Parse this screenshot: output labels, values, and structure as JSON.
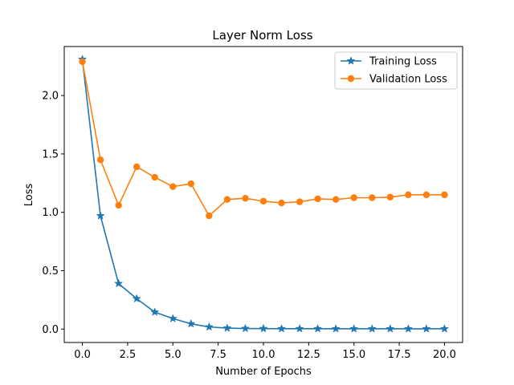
{
  "chart_data": {
    "type": "line",
    "title": "Layer Norm Loss",
    "xlabel": "Number of Epochs",
    "ylabel": "Loss",
    "xlim": [
      -1,
      21
    ],
    "ylim": [
      -0.115,
      2.42
    ],
    "xticks": [
      0,
      2.5,
      5,
      7.5,
      10,
      12.5,
      15,
      17.5,
      20
    ],
    "xtick_labels": [
      "0.0",
      "2.5",
      "5.0",
      "7.5",
      "10.0",
      "12.5",
      "15.0",
      "17.5",
      "20.0"
    ],
    "yticks": [
      0,
      0.5,
      1,
      1.5,
      2
    ],
    "ytick_labels": [
      "0.0",
      "0.5",
      "1.0",
      "1.5",
      "2.0"
    ],
    "grid": false,
    "legend_position": "top-right",
    "x": [
      0,
      1,
      2,
      3,
      4,
      5,
      6,
      7,
      8,
      9,
      10,
      11,
      12,
      13,
      14,
      15,
      16,
      17,
      18,
      19,
      20
    ],
    "series": [
      {
        "name": "Training Loss",
        "color": "#1f77b4",
        "marker": "star",
        "values": [
          2.31,
          0.97,
          0.39,
          0.26,
          0.145,
          0.09,
          0.045,
          0.018,
          0.008,
          0.005,
          0.004,
          0.003,
          0.003,
          0.003,
          0.002,
          0.002,
          0.002,
          0.002,
          0.002,
          0.002,
          0.002
        ]
      },
      {
        "name": "Validation Loss",
        "color": "#ff7f0e",
        "marker": "circle",
        "values": [
          2.29,
          1.45,
          1.06,
          1.39,
          1.3,
          1.22,
          1.245,
          0.97,
          1.11,
          1.12,
          1.095,
          1.08,
          1.09,
          1.115,
          1.11,
          1.125,
          1.125,
          1.13,
          1.15,
          1.15,
          1.15
        ]
      }
    ]
  }
}
